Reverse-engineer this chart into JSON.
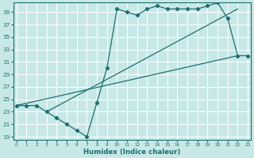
{
  "xlabel": "Humidex (Indice chaleur)",
  "ylabel": "",
  "xlim": [
    -0.3,
    23.3
  ],
  "ylim": [
    18.5,
    40.5
  ],
  "xticks": [
    0,
    1,
    2,
    3,
    4,
    5,
    6,
    7,
    8,
    9,
    10,
    11,
    12,
    13,
    14,
    15,
    16,
    17,
    18,
    19,
    20,
    21,
    22,
    23
  ],
  "yticks": [
    19,
    21,
    23,
    25,
    27,
    29,
    31,
    33,
    35,
    37,
    39
  ],
  "bg_color": "#c8e8e8",
  "line_color": "#1e6e6e",
  "grid_color": "#b0d4d4",
  "data_line": [
    [
      0,
      24
    ],
    [
      1,
      24
    ],
    [
      2,
      24
    ],
    [
      3,
      23
    ],
    [
      4,
      22
    ],
    [
      5,
      21
    ],
    [
      6,
      20
    ],
    [
      7,
      19
    ],
    [
      8,
      24.5
    ],
    [
      9,
      30
    ],
    [
      10,
      39.5
    ],
    [
      11,
      39
    ],
    [
      12,
      38.5
    ],
    [
      13,
      39.5
    ],
    [
      14,
      40
    ],
    [
      15,
      39.5
    ],
    [
      16,
      39.5
    ],
    [
      17,
      39.5
    ],
    [
      18,
      39.5
    ],
    [
      19,
      40
    ],
    [
      20,
      40.5
    ],
    [
      21,
      38
    ],
    [
      22,
      32
    ],
    [
      23,
      32
    ]
  ],
  "trend_line1": [
    [
      0,
      24
    ],
    [
      22,
      32
    ]
  ],
  "trend_line2": [
    [
      3,
      23
    ],
    [
      22,
      39.5
    ]
  ]
}
